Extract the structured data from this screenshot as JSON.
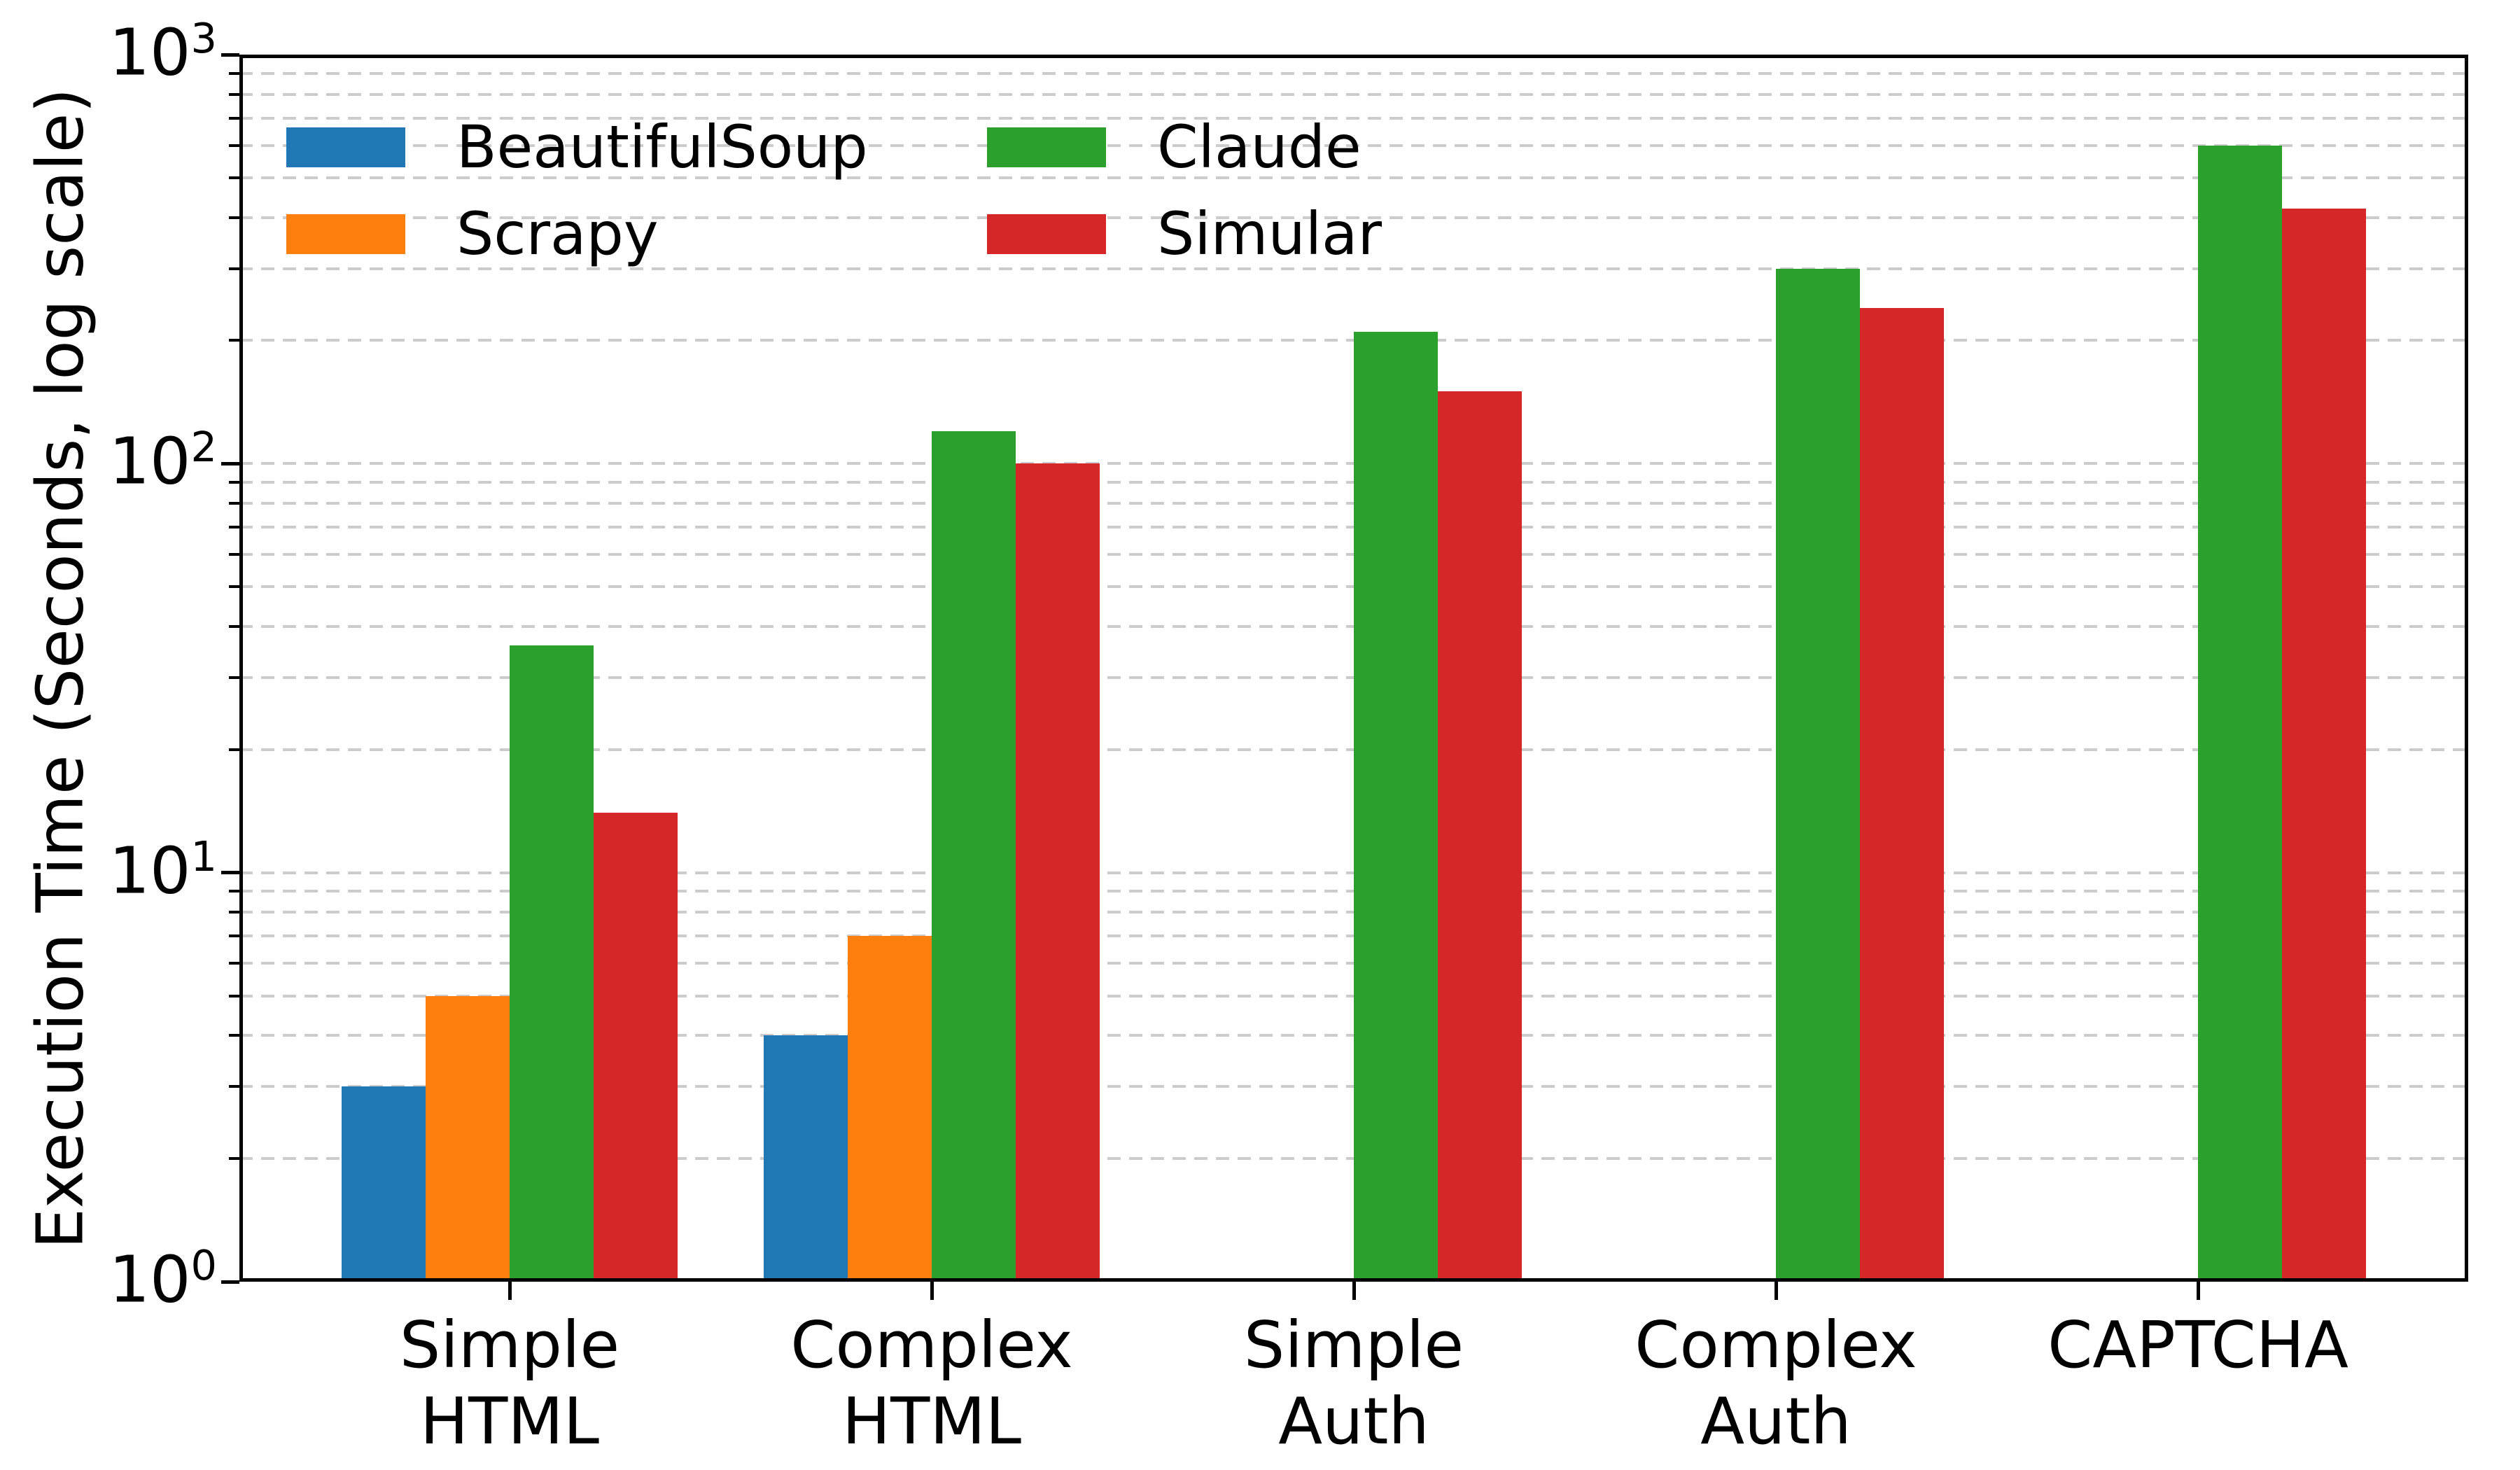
{
  "chart_data": {
    "type": "bar",
    "orientation": "vertical",
    "title": "",
    "xlabel": "",
    "ylabel": "Execution Time (Seconds, log scale)",
    "yscale": "log",
    "ylim": [
      1,
      1000
    ],
    "grid": {
      "axis": "y",
      "style": "dashed",
      "color": "#cccccc",
      "minor": true
    },
    "categories": [
      "Simple HTML",
      "Complex HTML",
      "Simple Auth",
      "Complex Auth",
      "CAPTCHA"
    ],
    "category_label_lines": [
      [
        "Simple",
        "HTML"
      ],
      [
        "Complex",
        "HTML"
      ],
      [
        "Simple",
        "Auth"
      ],
      [
        "Complex",
        "Auth"
      ],
      [
        "CAPTCHA"
      ]
    ],
    "series": [
      {
        "name": "BeautifulSoup",
        "color": "#1f77b4",
        "values": [
          3,
          4,
          null,
          null,
          null
        ]
      },
      {
        "name": "Scrapy",
        "color": "#ff7f0e",
        "values": [
          5,
          7,
          null,
          null,
          null
        ]
      },
      {
        "name": "Claude",
        "color": "#2ca02c",
        "values": [
          36,
          120,
          210,
          300,
          600
        ]
      },
      {
        "name": "Simular",
        "color": "#d62728",
        "values": [
          14,
          100,
          150,
          240,
          420
        ]
      }
    ],
    "y_ticks": [
      {
        "base": "10",
        "exp": "0",
        "value": 1
      },
      {
        "base": "10",
        "exp": "1",
        "value": 10
      },
      {
        "base": "10",
        "exp": "2",
        "value": 100
      },
      {
        "base": "10",
        "exp": "3",
        "value": 1000
      }
    ],
    "legend": {
      "position": "upper left",
      "columns": 2,
      "entries_column_major": [
        "BeautifulSoup",
        "Scrapy",
        "Claude",
        "Simular"
      ]
    },
    "colors": {
      "axis": "#000000",
      "gridline": "#cccccc",
      "background": "#ffffff"
    }
  }
}
